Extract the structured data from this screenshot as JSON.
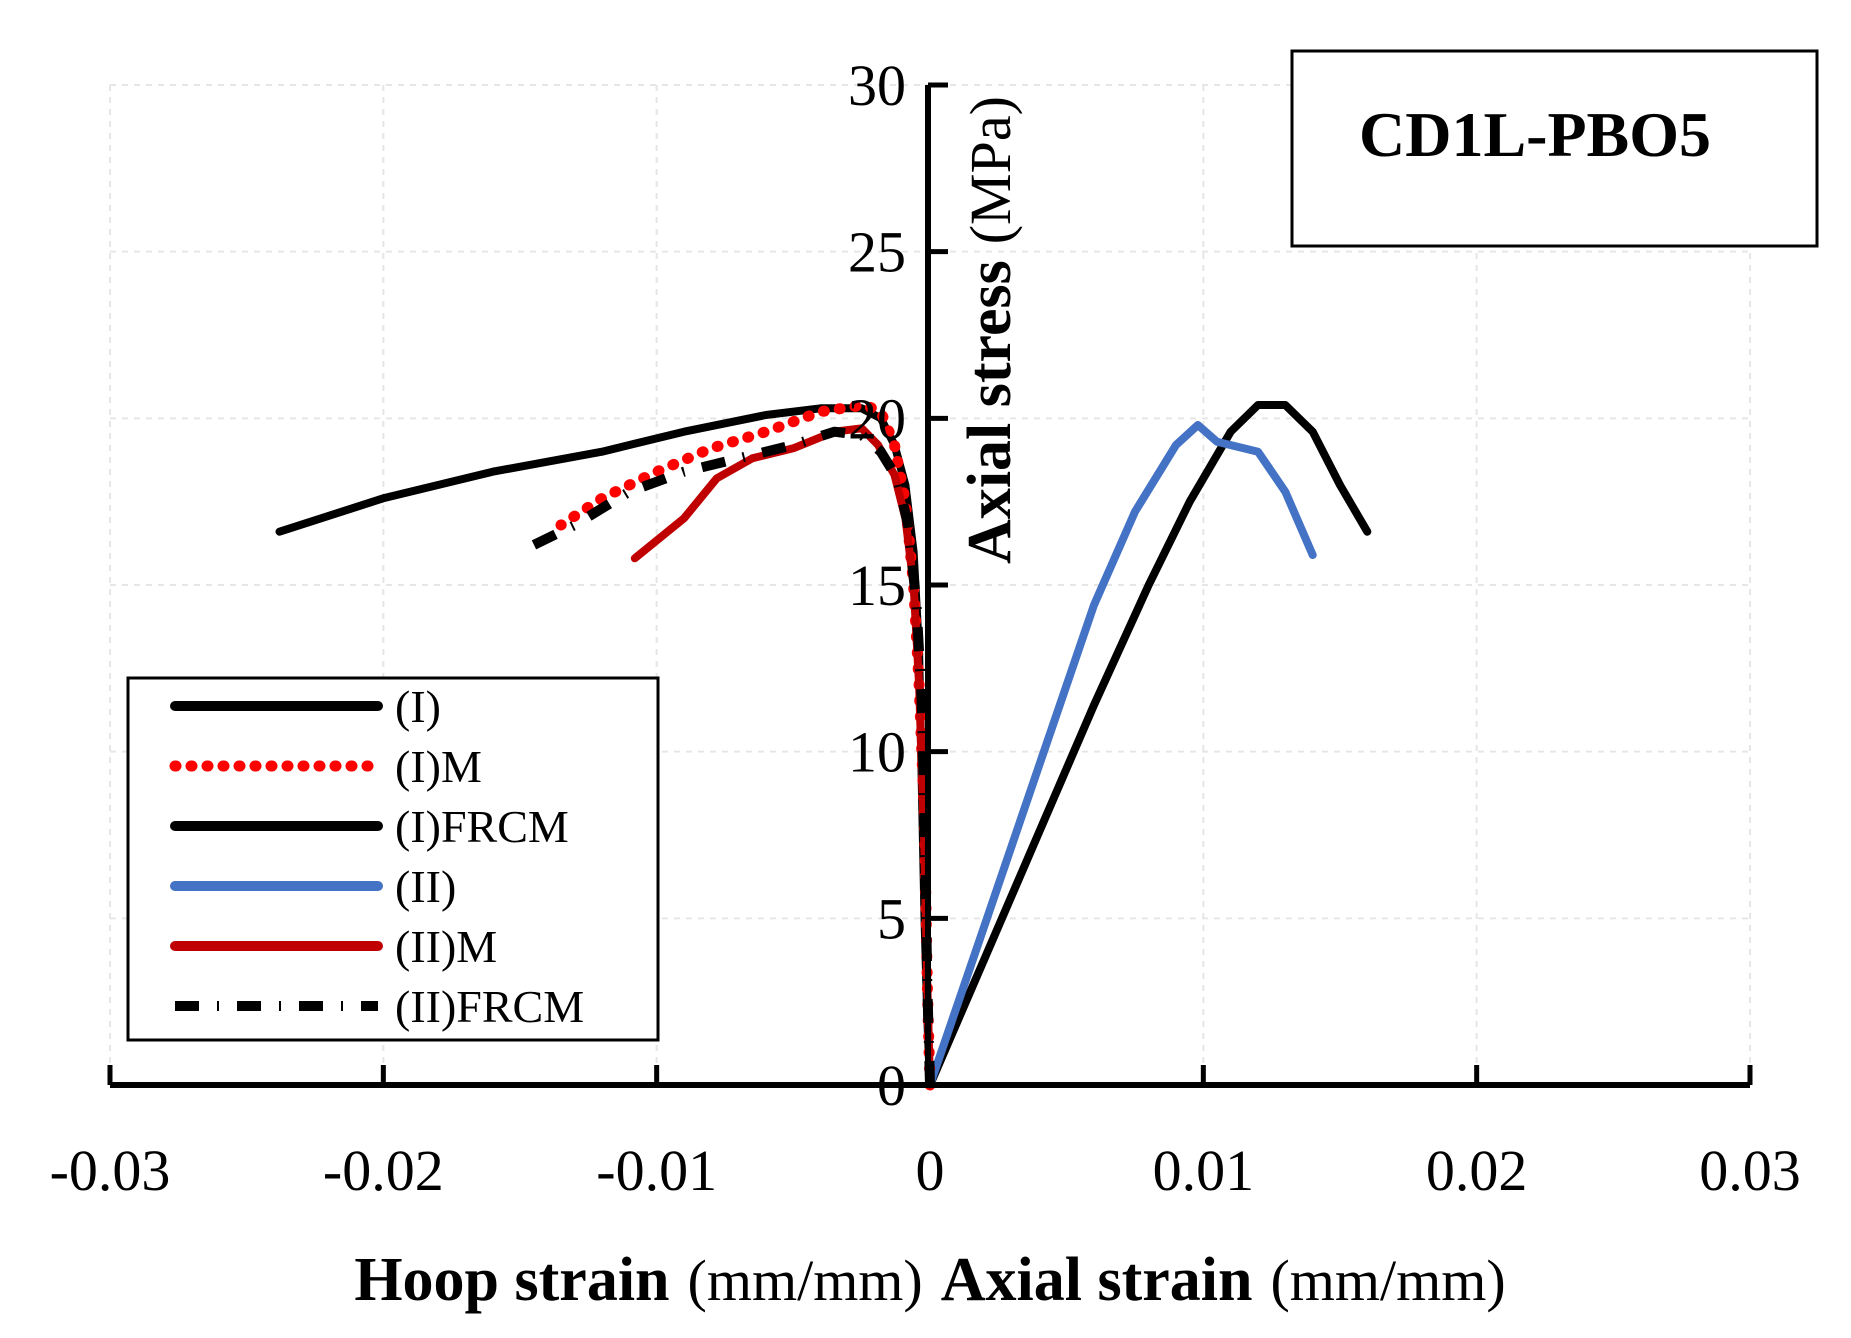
{
  "chart_data": {
    "type": "line",
    "title": "CD1L-PBO5",
    "xlabel_left_bold": "Hoop strain",
    "xlabel_left_unit": "(mm/mm)",
    "xlabel_right_bold": "Axial strain",
    "xlabel_right_unit": "(mm/mm)",
    "ylabel_bold": "Axial stress",
    "ylabel_unit": "(MPa)",
    "xlim": [
      -0.03,
      0.03
    ],
    "ylim": [
      0,
      30
    ],
    "x_ticks": [
      -0.03,
      -0.02,
      -0.01,
      0,
      0.01,
      0.02,
      0.03
    ],
    "x_tick_labels": [
      "-0.03",
      "-0.02",
      "-0.01",
      "0",
      "0.01",
      "0.02",
      "0.03"
    ],
    "y_ticks": [
      0,
      5,
      10,
      15,
      20,
      25,
      30
    ],
    "y_tick_labels": [
      "0",
      "5",
      "10",
      "15",
      "20",
      "25",
      "30"
    ],
    "grid": true,
    "legend_position": "bottom-left",
    "series": [
      {
        "name": "(I)",
        "color": "#000000",
        "style": "solid",
        "points": [
          [
            0,
            0
          ],
          [
            -0.0001,
            2
          ],
          [
            -0.0002,
            5
          ],
          [
            -0.0003,
            9
          ],
          [
            -0.0004,
            13
          ],
          [
            -0.0006,
            16
          ],
          [
            -0.0009,
            18
          ],
          [
            -0.0013,
            19.2
          ],
          [
            -0.0018,
            20
          ],
          [
            -0.0025,
            20.3
          ],
          [
            -0.004,
            20.3
          ],
          [
            -0.006,
            20.1
          ],
          [
            -0.009,
            19.6
          ],
          [
            -0.012,
            19.0
          ],
          [
            -0.016,
            18.4
          ],
          [
            -0.02,
            17.6
          ],
          [
            -0.0238,
            16.6
          ]
        ]
      },
      {
        "name": "(I)M",
        "color": "#ff0000",
        "style": "dotted",
        "points": [
          [
            0,
            0
          ],
          [
            -0.0001,
            3
          ],
          [
            -0.0002,
            8
          ],
          [
            -0.0004,
            12
          ],
          [
            -0.0006,
            15
          ],
          [
            -0.0009,
            17.5
          ],
          [
            -0.0013,
            19.2
          ],
          [
            -0.0018,
            20.2
          ],
          [
            -0.0024,
            20.4
          ],
          [
            -0.004,
            20.2
          ],
          [
            -0.006,
            19.6
          ],
          [
            -0.008,
            19.1
          ],
          [
            -0.01,
            18.4
          ],
          [
            -0.012,
            17.6
          ],
          [
            -0.0135,
            16.8
          ]
        ]
      },
      {
        "name": "(I)FRCM",
        "color": "#000000",
        "style": "solid",
        "points": [
          [
            0,
            0
          ],
          [
            0.002,
            3.8
          ],
          [
            0.004,
            7.6
          ],
          [
            0.006,
            11.4
          ],
          [
            0.008,
            15.0
          ],
          [
            0.0095,
            17.5
          ],
          [
            0.011,
            19.6
          ],
          [
            0.012,
            20.4
          ],
          [
            0.013,
            20.4
          ],
          [
            0.014,
            19.6
          ],
          [
            0.015,
            18.0
          ],
          [
            0.016,
            16.6
          ]
        ]
      },
      {
        "name": "(II)",
        "color": "#4472c4",
        "style": "solid",
        "points": [
          [
            0,
            0
          ],
          [
            0.002,
            4.8
          ],
          [
            0.004,
            9.6
          ],
          [
            0.006,
            14.4
          ],
          [
            0.0075,
            17.2
          ],
          [
            0.009,
            19.2
          ],
          [
            0.0098,
            19.8
          ],
          [
            0.0105,
            19.3
          ],
          [
            0.012,
            19.0
          ],
          [
            0.013,
            17.8
          ],
          [
            0.014,
            15.9
          ]
        ]
      },
      {
        "name": "(II)M",
        "color": "#c00000",
        "style": "solid",
        "points": [
          [
            0,
            0
          ],
          [
            -0.0001,
            3
          ],
          [
            -0.0002,
            7
          ],
          [
            -0.0003,
            9.5
          ],
          [
            -0.0004,
            12
          ],
          [
            -0.0006,
            15
          ],
          [
            -0.0009,
            17
          ],
          [
            -0.0013,
            18.3
          ],
          [
            -0.0019,
            19.2
          ],
          [
            -0.0025,
            19.7
          ],
          [
            -0.0035,
            19.6
          ],
          [
            -0.005,
            19.1
          ],
          [
            -0.0065,
            18.8
          ],
          [
            -0.0078,
            18.2
          ],
          [
            -0.009,
            17.0
          ],
          [
            -0.0108,
            15.8
          ]
        ]
      },
      {
        "name": "(II)FRCM",
        "color": "#000000",
        "style": "dashdot",
        "points": [
          [
            0,
            0
          ],
          [
            -0.0001,
            3
          ],
          [
            -0.0002,
            8
          ],
          [
            -0.0003,
            11.5
          ],
          [
            -0.0005,
            14.5
          ],
          [
            -0.0008,
            16.8
          ],
          [
            -0.0012,
            18.2
          ],
          [
            -0.0018,
            19.0
          ],
          [
            -0.0025,
            19.5
          ],
          [
            -0.0035,
            19.6
          ],
          [
            -0.005,
            19.2
          ],
          [
            -0.007,
            18.8
          ],
          [
            -0.009,
            18.4
          ],
          [
            -0.011,
            17.8
          ],
          [
            -0.013,
            16.8
          ],
          [
            -0.015,
            16.0
          ]
        ]
      }
    ]
  }
}
